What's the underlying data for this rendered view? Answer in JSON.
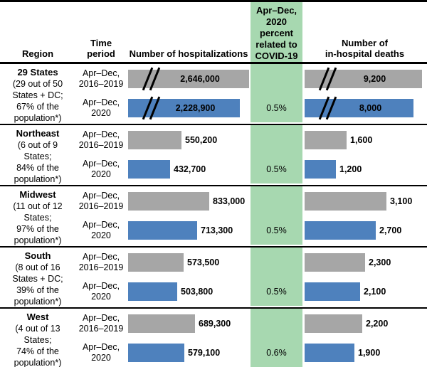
{
  "header": {
    "region": "Region",
    "time_period": "Time\nperiod",
    "hospitalizations": "Number of hospitalizations",
    "covid_pct": "Apr–Dec,\n2020\npercent\nrelated to\nCOVID-19",
    "deaths": "Number of\nin-hospital deaths"
  },
  "colors": {
    "bar_2016_2019": "#A6A6A6",
    "bar_2020": "#4E81BD",
    "covid_col_bg": "#A7D8B0",
    "line": "#000000"
  },
  "chart_data": {
    "type": "bar",
    "orientation": "horizontal",
    "series": [
      "Apr–Dec, 2016–2019",
      "Apr–Dec, 2020"
    ],
    "measures": [
      "Number of hospitalizations",
      "Number of in-hospital deaths"
    ],
    "legend_position": "none",
    "grid": false,
    "regions": [
      {
        "region": "29 States",
        "note": "(29 out of 50\nStates + DC;\n67% of the\npopulation*)",
        "period_labels": [
          "Apr–Dec,\n2016–2019",
          "Apr–Dec,\n2020"
        ],
        "hospitalizations": {
          "values": [
            2646000,
            2228900
          ],
          "labels": [
            "2,646,000",
            "2,228,900"
          ]
        },
        "deaths": {
          "values": [
            9200,
            8000
          ],
          "labels": [
            "9,200",
            "8,000"
          ]
        },
        "covid_pct": "0.5%",
        "broken_axis": true
      },
      {
        "region": "Northeast",
        "note": "(6 out of 9\nStates;\n84% of the\npopulation*)",
        "period_labels": [
          "Apr–Dec,\n2016–2019",
          "Apr–Dec,\n2020"
        ],
        "hospitalizations": {
          "values": [
            550200,
            432700
          ],
          "labels": [
            "550,200",
            "432,700"
          ]
        },
        "deaths": {
          "values": [
            1600,
            1200
          ],
          "labels": [
            "1,600",
            "1,200"
          ]
        },
        "covid_pct": "0.5%",
        "broken_axis": false
      },
      {
        "region": "Midwest",
        "note": "(11 out of 12\nStates;\n97% of the\npopulation*)",
        "period_labels": [
          "Apr–Dec,\n2016–2019",
          "Apr–Dec,\n2020"
        ],
        "hospitalizations": {
          "values": [
            833000,
            713300
          ],
          "labels": [
            "833,000",
            "713,300"
          ]
        },
        "deaths": {
          "values": [
            3100,
            2700
          ],
          "labels": [
            "3,100",
            "2,700"
          ]
        },
        "covid_pct": "0.5%",
        "broken_axis": false
      },
      {
        "region": "South",
        "note": "(8 out of 16\nStates + DC;\n39% of the\npopulation*)",
        "period_labels": [
          "Apr–Dec,\n2016–2019",
          "Apr–Dec,\n2020"
        ],
        "hospitalizations": {
          "values": [
            573500,
            503800
          ],
          "labels": [
            "573,500",
            "503,800"
          ]
        },
        "deaths": {
          "values": [
            2300,
            2100
          ],
          "labels": [
            "2,300",
            "2,100"
          ]
        },
        "covid_pct": "0.5%",
        "broken_axis": false
      },
      {
        "region": "West",
        "note": "(4 out of 13\nStates;\n74% of the\npopulation*)",
        "period_labels": [
          "Apr–Dec,\n2016–2019",
          "Apr–Dec,\n2020"
        ],
        "hospitalizations": {
          "values": [
            689300,
            579100
          ],
          "labels": [
            "689,300",
            "579,100"
          ]
        },
        "deaths": {
          "values": [
            2200,
            1900
          ],
          "labels": [
            "2,200",
            "1,900"
          ]
        },
        "covid_pct": "0.6%",
        "broken_axis": false
      }
    ]
  }
}
